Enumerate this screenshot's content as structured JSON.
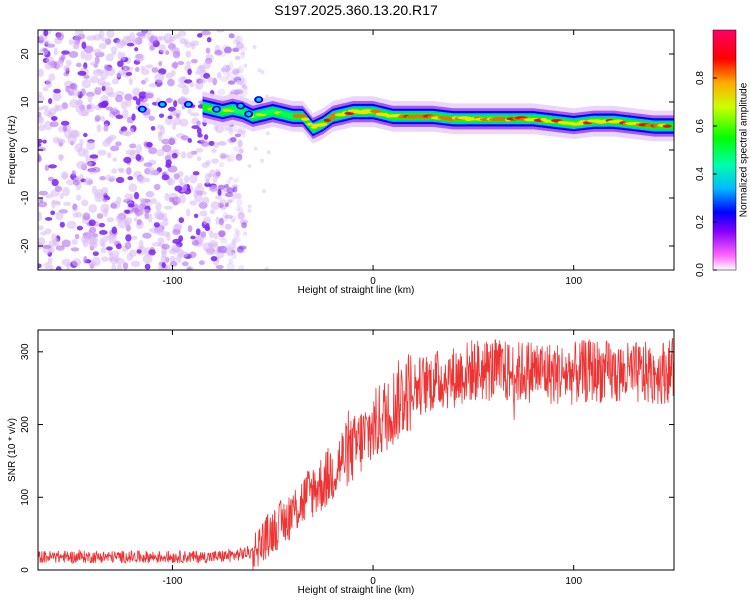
{
  "title": "S197.2025.360.13.20.R17",
  "chart_data": [
    {
      "type": "heatmap",
      "title": "S197.2025.360.13.20.R17",
      "xlabel": "Height of straight line (km)",
      "ylabel": "Frequency (Hz)",
      "xlim": [
        -167,
        150
      ],
      "ylim": [
        -25,
        25
      ],
      "xticks": [
        -100,
        0,
        100
      ],
      "yticks": [
        -20,
        -10,
        0,
        10,
        20
      ],
      "colorbar": {
        "label": "Normalized spectral amplitude",
        "range": [
          0,
          1
        ],
        "ticks": [
          "0.0",
          "0.2",
          "0.4",
          "0.6",
          "0.8"
        ],
        "colors": [
          "#ffffff",
          "#ff00ff",
          "#0000ff",
          "#00ffff",
          "#00ff00",
          "#ffff00",
          "#ff0000",
          "#ff0066"
        ]
      },
      "ridge": {
        "name": "Doppler frequency ridge",
        "x": [
          -85,
          -80,
          -75,
          -70,
          -65,
          -60,
          -55,
          -50,
          -45,
          -40,
          -35,
          -30,
          -25,
          -20,
          -15,
          -10,
          -5,
          0,
          10,
          20,
          30,
          40,
          50,
          60,
          70,
          80,
          90,
          100,
          110,
          120,
          130,
          140,
          150
        ],
        "y": [
          9.0,
          8.5,
          8.0,
          8.5,
          8.0,
          7.0,
          7.5,
          8.0,
          7.5,
          7.0,
          7.0,
          4.5,
          5.5,
          7.0,
          7.5,
          8.0,
          8.0,
          8.0,
          7.0,
          7.0,
          7.0,
          6.5,
          6.5,
          6.5,
          6.5,
          6.5,
          6.0,
          5.5,
          6.0,
          6.0,
          5.5,
          5.0,
          5.0
        ]
      }
    },
    {
      "type": "line",
      "xlabel": "Height of straight line (km)",
      "ylabel": "SNR (10 * v/v)",
      "xlim": [
        -167,
        150
      ],
      "ylim": [
        0,
        330
      ],
      "xticks": [
        -100,
        0,
        100
      ],
      "yticks": [
        0,
        100,
        200,
        300
      ],
      "color": "#ee3333",
      "series": [
        {
          "name": "SNR",
          "x": [
            -167,
            -150,
            -130,
            -110,
            -90,
            -80,
            -70,
            -60,
            -55,
            -50,
            -45,
            -40,
            -35,
            -30,
            -25,
            -20,
            -15,
            -10,
            -5,
            0,
            5,
            10,
            15,
            20,
            30,
            40,
            50,
            60,
            70,
            80,
            90,
            100,
            110,
            120,
            130,
            140,
            150
          ],
          "values": [
            18,
            18,
            18,
            18,
            18,
            18,
            20,
            25,
            40,
            55,
            65,
            80,
            95,
            110,
            120,
            135,
            155,
            165,
            180,
            195,
            210,
            225,
            240,
            250,
            260,
            265,
            275,
            275,
            270,
            275,
            270,
            270,
            275,
            270,
            270,
            270,
            275
          ]
        }
      ]
    }
  ]
}
